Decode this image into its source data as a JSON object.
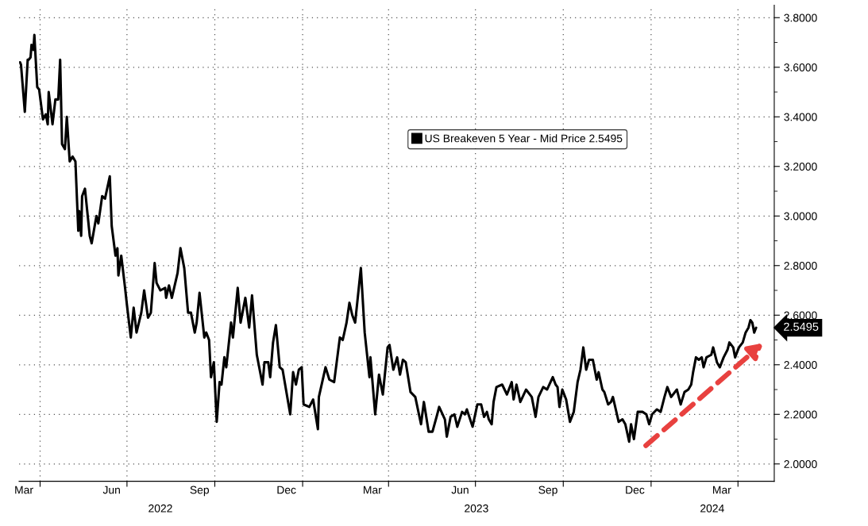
{
  "chart_data": {
    "type": "line",
    "x": [
      "2022-03-11",
      "2022-03-12",
      "2022-03-16",
      "2022-03-19",
      "2022-03-20",
      "2022-03-22",
      "2022-03-23",
      "2022-03-25",
      "2022-03-26",
      "2022-03-29",
      "2022-03-31",
      "2022-04-04",
      "2022-04-07",
      "2022-04-09",
      "2022-04-10",
      "2022-04-14",
      "2022-04-17",
      "2022-04-20",
      "2022-04-22",
      "2022-04-24",
      "2022-04-27",
      "2022-04-29",
      "2022-05-02",
      "2022-05-05",
      "2022-05-08",
      "2022-05-11",
      "2022-05-12",
      "2022-05-14",
      "2022-05-15",
      "2022-05-18",
      "2022-05-23",
      "2022-05-25",
      "2022-05-30",
      "2022-06-01",
      "2022-06-05",
      "2022-06-08",
      "2022-06-13",
      "2022-06-15",
      "2022-06-19",
      "2022-06-21",
      "2022-06-22",
      "2022-06-25",
      "2022-06-29",
      "2022-07-01",
      "2022-07-05",
      "2022-07-08",
      "2022-07-11",
      "2022-07-16",
      "2022-07-19",
      "2022-07-23",
      "2022-07-26",
      "2022-07-28",
      "2022-07-30",
      "2022-08-01",
      "2022-08-05",
      "2022-08-10",
      "2022-08-11",
      "2022-08-14",
      "2022-08-17",
      "2022-08-23",
      "2022-08-26",
      "2022-08-30",
      "2022-09-03",
      "2022-09-06",
      "2022-09-10",
      "2022-09-12",
      "2022-09-15",
      "2022-09-20",
      "2022-09-22",
      "2022-09-25",
      "2022-09-27",
      "2022-09-30",
      "2022-10-03",
      "2022-10-06",
      "2022-10-08",
      "2022-10-11",
      "2022-10-13",
      "2022-10-18",
      "2022-10-20",
      "2022-10-25",
      "2022-10-28",
      "2022-11-02",
      "2022-11-06",
      "2022-11-09",
      "2022-11-14",
      "2022-11-20",
      "2022-11-22",
      "2022-11-26",
      "2022-11-28",
      "2022-12-01",
      "2022-12-04",
      "2022-12-08",
      "2022-12-11",
      "2022-12-19",
      "2022-12-22",
      "2022-12-25",
      "2022-12-28",
      "2022-12-31",
      "2023-01-02",
      "2023-01-08",
      "2023-01-12",
      "2023-01-17",
      "2023-01-18",
      "2023-01-25",
      "2023-01-29",
      "2023-02-03",
      "2023-02-09",
      "2023-02-12",
      "2023-02-16",
      "2023-02-19",
      "2023-02-22",
      "2023-02-25",
      "2023-03-03",
      "2023-03-07",
      "2023-03-12",
      "2023-03-13",
      "2023-03-18",
      "2023-03-22",
      "2023-03-26",
      "2023-03-31",
      "2023-04-02",
      "2023-04-06",
      "2023-04-10",
      "2023-04-13",
      "2023-04-16",
      "2023-04-19",
      "2023-04-24",
      "2023-04-29",
      "2023-05-05",
      "2023-05-08",
      "2023-05-13",
      "2023-05-17",
      "2023-05-22",
      "2023-05-24",
      "2023-05-30",
      "2023-06-01",
      "2023-06-05",
      "2023-06-09",
      "2023-06-12",
      "2023-06-17",
      "2023-06-20",
      "2023-06-22",
      "2023-06-28",
      "2023-07-03",
      "2023-07-07",
      "2023-07-10",
      "2023-07-13",
      "2023-07-15",
      "2023-07-18",
      "2023-07-20",
      "2023-07-23",
      "2023-07-29",
      "2023-08-03",
      "2023-08-08",
      "2023-08-10",
      "2023-08-13",
      "2023-08-17",
      "2023-08-23",
      "2023-08-29",
      "2023-09-02",
      "2023-09-05",
      "2023-09-10",
      "2023-09-14",
      "2023-09-20",
      "2023-09-23",
      "2023-09-25",
      "2023-09-27",
      "2023-09-30",
      "2023-10-04",
      "2023-10-08",
      "2023-10-12",
      "2023-10-16",
      "2023-10-19",
      "2023-10-22",
      "2023-10-25",
      "2023-10-28",
      "2023-11-01",
      "2023-11-05",
      "2023-11-07",
      "2023-11-11",
      "2023-11-13",
      "2023-11-17",
      "2023-11-20",
      "2023-11-22",
      "2023-11-25",
      "2023-11-28",
      "2023-12-02",
      "2023-12-05",
      "2023-12-09",
      "2023-12-11",
      "2023-12-14",
      "2023-12-18",
      "2023-12-23",
      "2023-12-27",
      "2023-12-30",
      "2024-01-02",
      "2024-01-07",
      "2024-01-11",
      "2024-01-15",
      "2024-01-18",
      "2024-01-22",
      "2024-01-28",
      "2024-02-01",
      "2024-02-05",
      "2024-02-09",
      "2024-02-12",
      "2024-02-14",
      "2024-02-17",
      "2024-02-20",
      "2024-02-23",
      "2024-02-25",
      "2024-02-28",
      "2024-03-04",
      "2024-03-06",
      "2024-03-10",
      "2024-03-13",
      "2024-03-17",
      "2024-03-21",
      "2024-03-23",
      "2024-03-27",
      "2024-03-29",
      "2024-04-02",
      "2024-04-06",
      "2024-04-09",
      "2024-04-12",
      "2024-04-14",
      "2024-04-16",
      "2024-04-18",
      "2024-04-20"
    ],
    "series": [
      {
        "name": "US Breakeven 5 Year - Mid Price 2.5495",
        "color": "#000000",
        "values": [
          3.62,
          3.61,
          3.42,
          3.63,
          3.63,
          3.64,
          3.69,
          3.67,
          3.73,
          3.52,
          3.51,
          3.39,
          3.41,
          3.37,
          3.5,
          3.37,
          3.47,
          3.47,
          3.63,
          3.29,
          3.27,
          3.4,
          3.22,
          3.24,
          3.22,
          2.94,
          3.02,
          2.92,
          3.08,
          3.11,
          2.92,
          2.89,
          3.0,
          2.97,
          3.08,
          3.07,
          3.16,
          2.96,
          2.84,
          2.87,
          2.76,
          2.84,
          2.71,
          2.64,
          2.51,
          2.63,
          2.53,
          2.61,
          2.7,
          2.59,
          2.61,
          2.71,
          2.81,
          2.73,
          2.7,
          2.71,
          2.67,
          2.72,
          2.67,
          2.77,
          2.87,
          2.79,
          2.61,
          2.61,
          2.53,
          2.57,
          2.69,
          2.51,
          2.53,
          2.5,
          2.35,
          2.41,
          2.17,
          2.33,
          2.32,
          2.43,
          2.39,
          2.57,
          2.51,
          2.71,
          2.57,
          2.67,
          2.55,
          2.68,
          2.44,
          2.32,
          2.41,
          2.41,
          2.35,
          2.49,
          2.56,
          2.39,
          2.38,
          2.2,
          2.37,
          2.32,
          2.38,
          2.39,
          2.24,
          2.23,
          2.26,
          2.14,
          2.27,
          2.39,
          2.34,
          2.33,
          2.51,
          2.5,
          2.57,
          2.65,
          2.6,
          2.57,
          2.79,
          2.53,
          2.35,
          2.43,
          2.2,
          2.36,
          2.28,
          2.47,
          2.48,
          2.38,
          2.43,
          2.36,
          2.42,
          2.41,
          2.29,
          2.27,
          2.16,
          2.25,
          2.13,
          2.13,
          2.2,
          2.23,
          2.18,
          2.11,
          2.19,
          2.2,
          2.15,
          2.21,
          2.2,
          2.22,
          2.15,
          2.24,
          2.24,
          2.19,
          2.21,
          2.18,
          2.16,
          2.25,
          2.31,
          2.32,
          2.28,
          2.33,
          2.26,
          2.32,
          2.25,
          2.3,
          2.27,
          2.19,
          2.27,
          2.31,
          2.3,
          2.35,
          2.32,
          2.31,
          2.23,
          2.3,
          2.26,
          2.17,
          2.21,
          2.33,
          2.38,
          2.47,
          2.38,
          2.42,
          2.42,
          2.34,
          2.37,
          2.3,
          2.29,
          2.24,
          2.25,
          2.27,
          2.22,
          2.17,
          2.18,
          2.16,
          2.09,
          2.16,
          2.1,
          2.21,
          2.21,
          2.2,
          2.16,
          2.2,
          2.22,
          2.21,
          2.27,
          2.31,
          2.27,
          2.3,
          2.24,
          2.29,
          2.3,
          2.32,
          2.37,
          2.43,
          2.42,
          2.43,
          2.39,
          2.43,
          2.44,
          2.47,
          2.41,
          2.39,
          2.43,
          2.46,
          2.49,
          2.47,
          2.43,
          2.47,
          2.49,
          2.53,
          2.55,
          2.58,
          2.57,
          2.53,
          2.5495
        ]
      }
    ],
    "xlim": [
      "2022-03-10",
      "2024-05-09"
    ],
    "xticks": [
      {
        "value": "2022-03-15",
        "label": "Mar"
      },
      {
        "value": "2022-04-01",
        "label": null
      },
      {
        "value": "2022-06-15",
        "label": "Jun"
      },
      {
        "value": "2022-07-01",
        "label": null
      },
      {
        "value": "2022-09-15",
        "label": "Sep"
      },
      {
        "value": "2022-10-01",
        "label": null
      },
      {
        "value": "2022-12-15",
        "label": "Dec"
      },
      {
        "value": "2023-01-01",
        "label": null
      },
      {
        "value": "2023-03-15",
        "label": "Mar"
      },
      {
        "value": "2023-04-01",
        "label": null
      },
      {
        "value": "2023-06-15",
        "label": "Jun"
      },
      {
        "value": "2023-07-01",
        "label": null
      },
      {
        "value": "2023-09-15",
        "label": "Sep"
      },
      {
        "value": "2023-10-01",
        "label": null
      },
      {
        "value": "2023-12-15",
        "label": "Dec"
      },
      {
        "value": "2024-01-01",
        "label": null
      },
      {
        "value": "2024-03-15",
        "label": "Mar"
      },
      {
        "value": "2024-04-01",
        "label": null
      }
    ],
    "x2lim": [
      "2022-03-10",
      "2024-05-09"
    ],
    "x2ticks": [
      {
        "value": "2022-08-05",
        "label": "2022"
      },
      {
        "value": "2023-07-02",
        "label": "2023"
      },
      {
        "value": "2024-03-05",
        "label": "2024"
      }
    ],
    "ylim": [
      1.93,
      3.85
    ],
    "yticks": [
      {
        "value": 2.0,
        "label": "2.0000"
      },
      {
        "value": 2.1,
        "label": null
      },
      {
        "value": 2.2,
        "label": "2.2000"
      },
      {
        "value": 2.3,
        "label": null
      },
      {
        "value": 2.4,
        "label": "2.4000"
      },
      {
        "value": 2.5,
        "label": null
      },
      {
        "value": 2.6,
        "label": "2.6000"
      },
      {
        "value": 2.7,
        "label": null
      },
      {
        "value": 2.8,
        "label": "2.8000"
      },
      {
        "value": 2.9,
        "label": null
      },
      {
        "value": 3.0,
        "label": "3.0000"
      },
      {
        "value": 3.1,
        "label": null
      },
      {
        "value": 3.2,
        "label": "3.2000"
      },
      {
        "value": 3.3,
        "label": null
      },
      {
        "value": 3.4,
        "label": "3.4000"
      },
      {
        "value": 3.5,
        "label": null
      },
      {
        "value": 3.6,
        "label": "3.6000"
      },
      {
        "value": 3.7,
        "label": null
      },
      {
        "value": 3.8,
        "label": "3.8000"
      }
    ],
    "annotations": [
      "2.5495"
    ],
    "grid": true,
    "legend": "top",
    "line_style": "solid",
    "marker": "none"
  }
}
